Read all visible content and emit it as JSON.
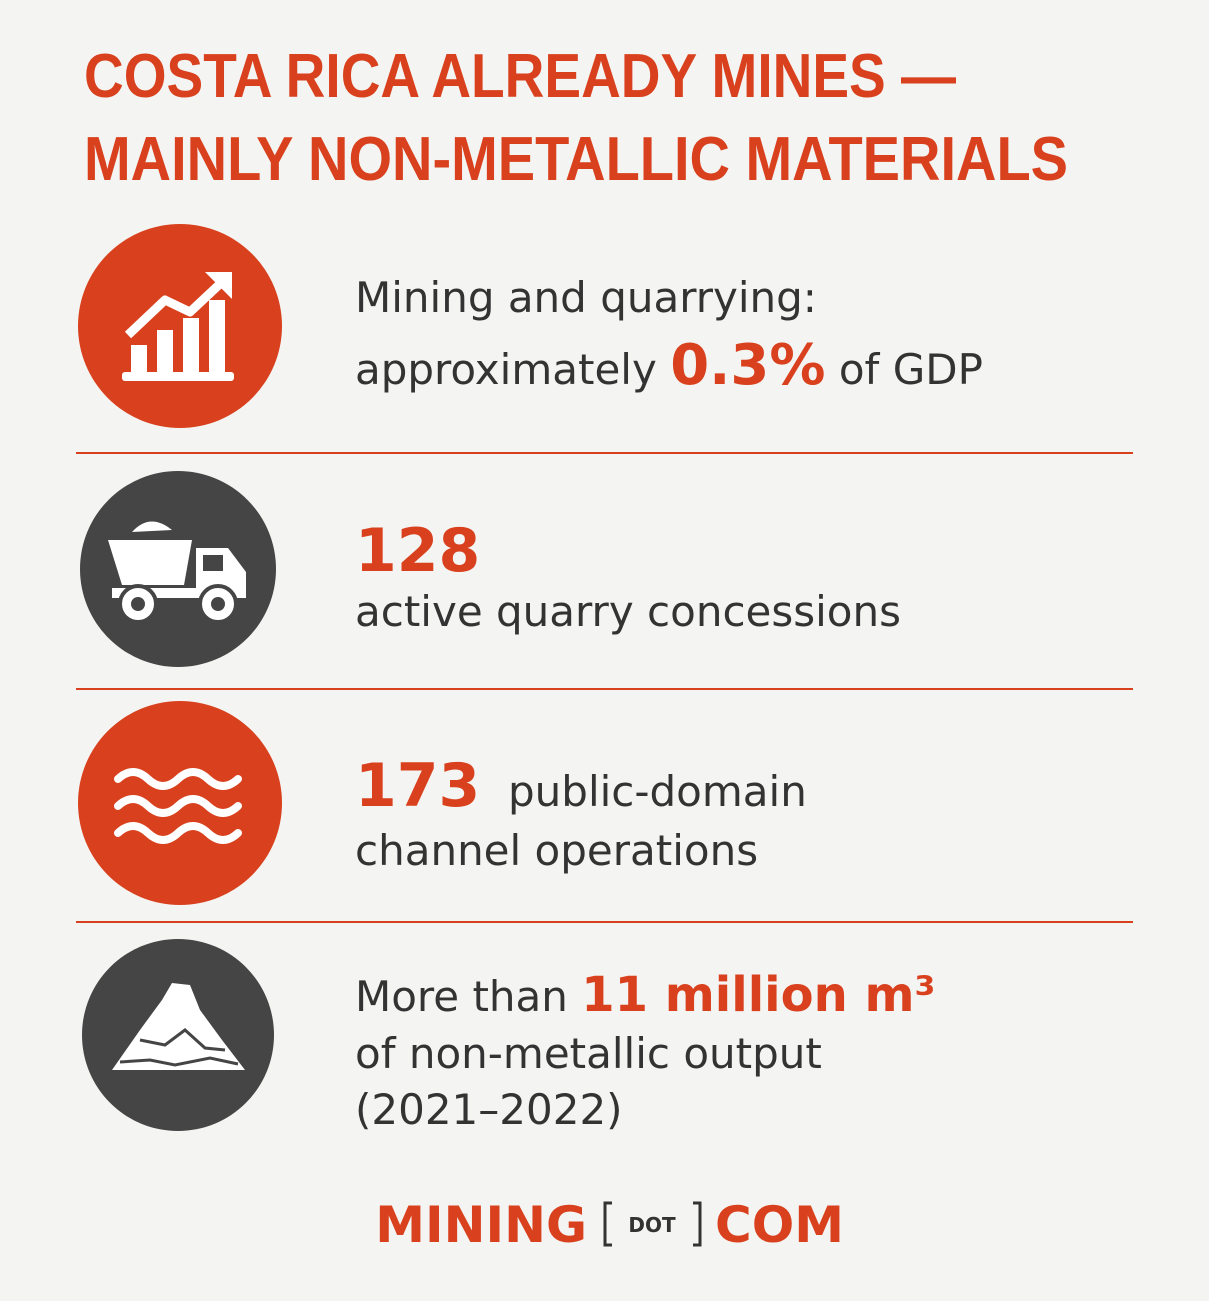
{
  "title": {
    "line1": "COSTA RICA ALREADY MINES —",
    "line2": "MAINLY NON-METALLIC MATERIALS"
  },
  "items": [
    {
      "line1": "Mining and quarrying:",
      "pre": "approximately",
      "highlight": "0.3%",
      "post": "of GDP"
    },
    {
      "highlight": "128",
      "line1": "active quarry concessions"
    },
    {
      "highlight": "173",
      "post": "public-domain",
      "line2": "channel operations"
    },
    {
      "pre": "More than",
      "highlight": "11 million m³",
      "line2": "of non-metallic output",
      "line3": "(2021–2022)"
    }
  ],
  "logo": {
    "left": "MINING",
    "middle": "DOT",
    "right": "COM"
  }
}
